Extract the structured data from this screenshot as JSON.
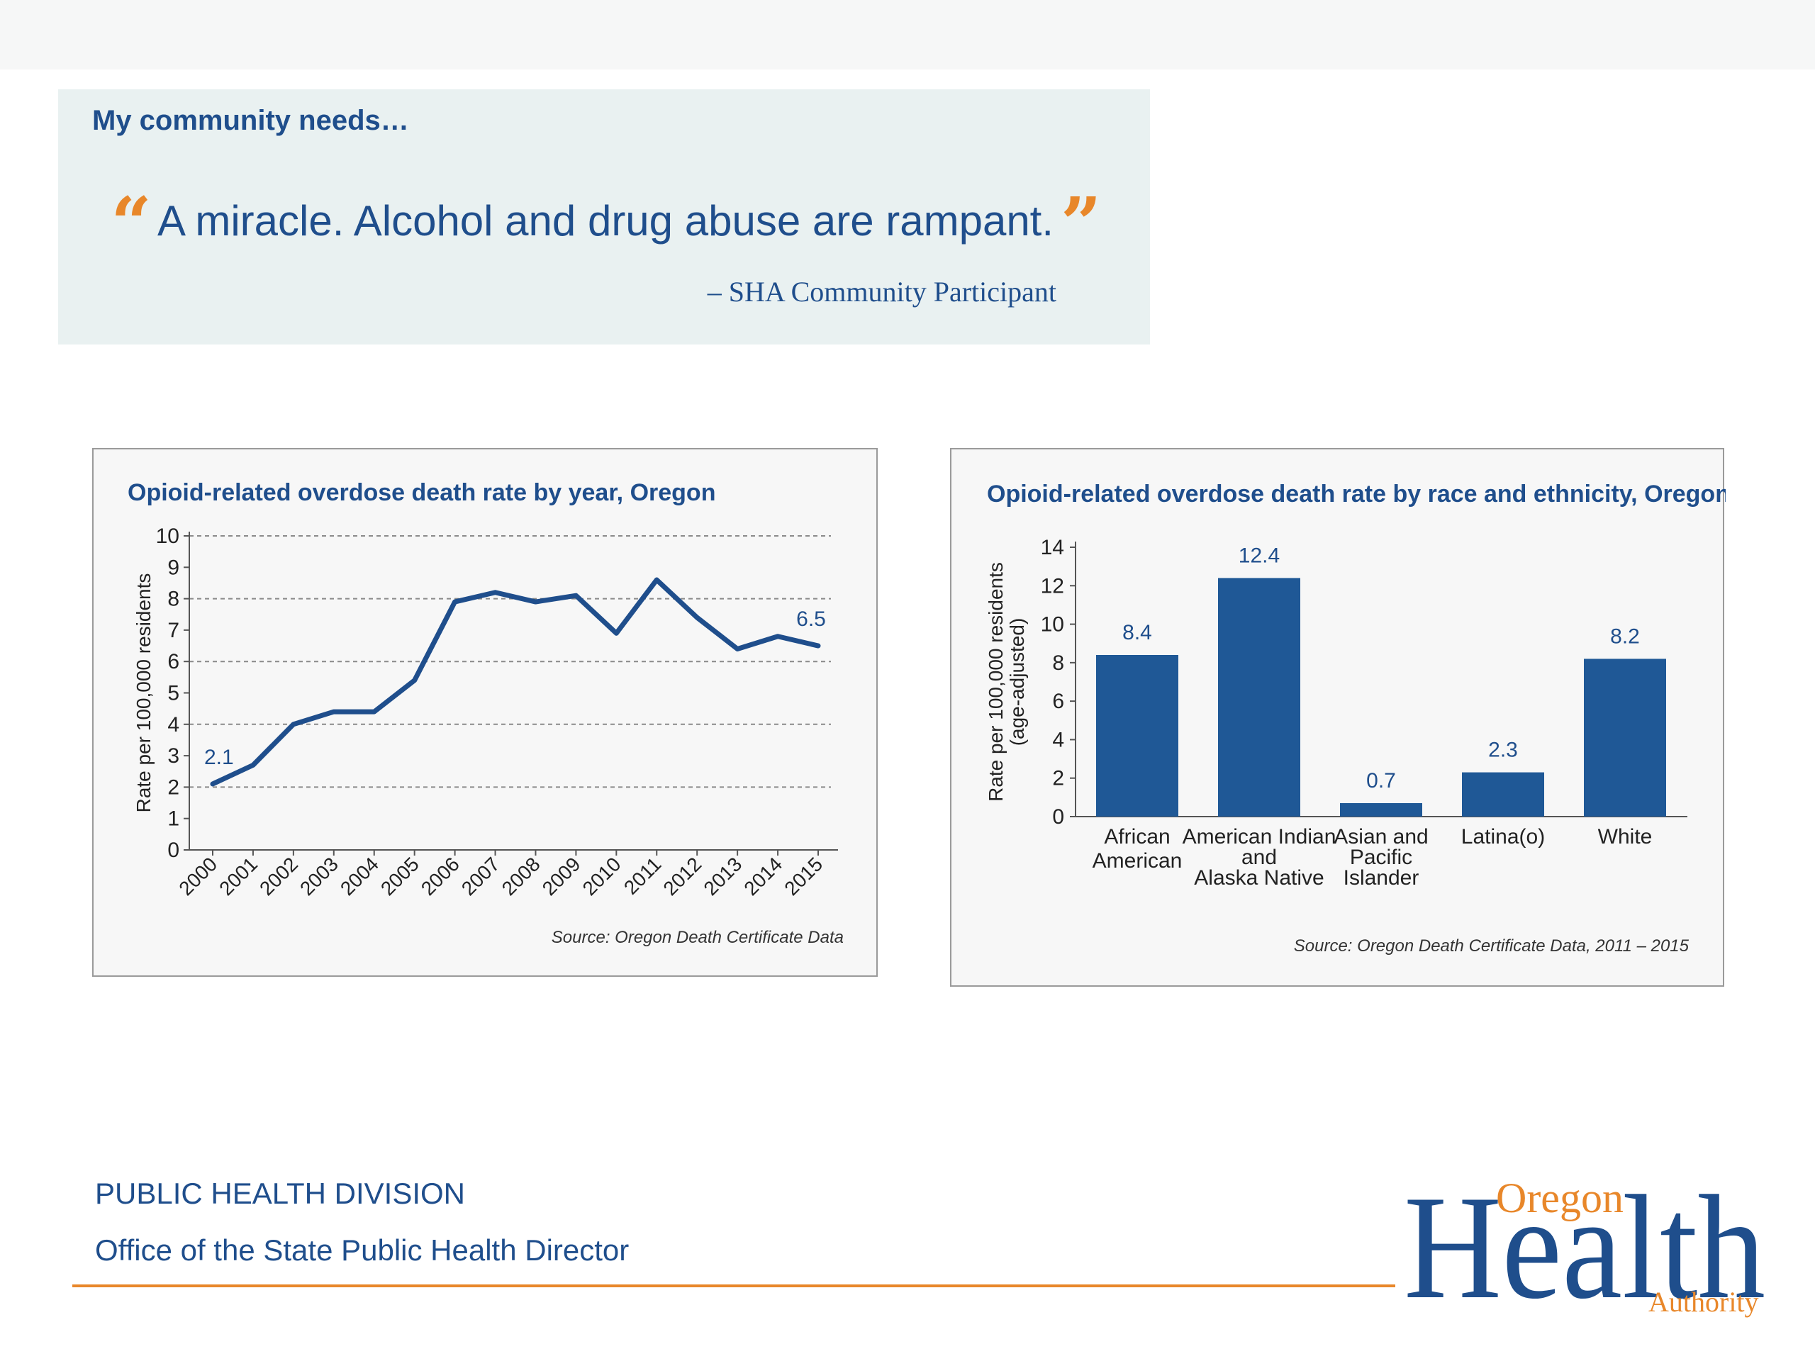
{
  "quote": {
    "heading": "My community needs…",
    "open_mark": "“",
    "text": "A miracle. Alcohol and drug abuse are rampant.",
    "close_mark": "”",
    "attribution": "– SHA Community Participant"
  },
  "chart_data": [
    {
      "type": "line",
      "title": "Opioid-related overdose death rate by year, Oregon",
      "ylabel": "Rate per 100,000 residents",
      "xlabel": "",
      "x": [
        "2000",
        "2001",
        "2002",
        "2003",
        "2004",
        "2005",
        "2006",
        "2007",
        "2008",
        "2009",
        "2010",
        "2011",
        "2012",
        "2013",
        "2014",
        "2015"
      ],
      "series": [
        {
          "values": [
            2.1,
            2.7,
            4.0,
            4.4,
            4.4,
            5.4,
            7.9,
            8.2,
            7.9,
            8.1,
            6.9,
            8.6,
            7.4,
            6.4,
            6.8,
            6.5
          ]
        }
      ],
      "data_labels": [
        {
          "index": 0,
          "text": "2.1"
        },
        {
          "index": 15,
          "text": "6.5"
        }
      ],
      "ylim": [
        0,
        10
      ],
      "yticks": [
        0,
        1,
        2,
        3,
        4,
        5,
        6,
        7,
        8,
        9,
        10
      ],
      "gridlines": [
        2,
        4,
        6,
        8,
        10
      ],
      "color": "#1f4e8c",
      "source": "Source: Oregon Death Certificate Data"
    },
    {
      "type": "bar",
      "title": "Opioid-related overdose death rate by race and ethnicity, Oregon,",
      "ylabel": "Rate per 100,000 residents (age-adjusted)",
      "ylabel_lines": [
        "Rate per 100,000 residents",
        "(age-adjusted)"
      ],
      "xlabel": "",
      "categories": [
        [
          "African",
          "American"
        ],
        [
          "American Indian",
          "and",
          "Alaska Native"
        ],
        [
          "Asian and",
          "Pacific",
          "Islander"
        ],
        [
          "Latina(o)"
        ],
        [
          "White"
        ]
      ],
      "values": [
        8.4,
        12.4,
        0.7,
        2.3,
        8.2
      ],
      "value_labels": [
        "8.4",
        "12.4",
        "0.7",
        "2.3",
        "8.2"
      ],
      "ylim": [
        0,
        14
      ],
      "yticks": [
        0,
        2,
        4,
        6,
        8,
        10,
        12,
        14
      ],
      "color": "#1f5896",
      "source": "Source: Oregon Death Certificate Data, 2011 – 2015"
    }
  ],
  "footer": {
    "division": "PUBLIC HEALTH DIVISION",
    "office": "Office of the State Public Health Director"
  },
  "logo": {
    "word_top": "Oregon",
    "word_main": "Health",
    "word_bottom": "Authority"
  },
  "colors": {
    "navy": "#1f4e8c",
    "orange": "#e8872a",
    "quote_bg": "#e9f1f1"
  }
}
